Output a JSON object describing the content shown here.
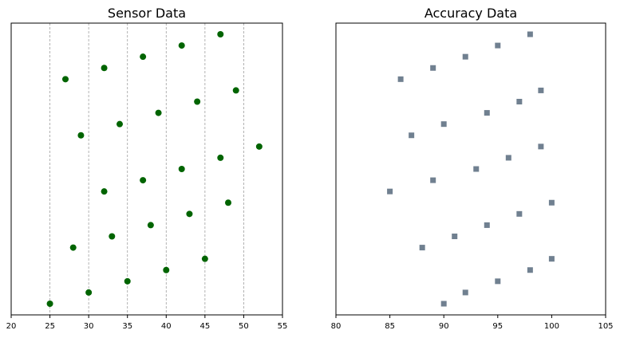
{
  "chart_data": [
    {
      "type": "scatter",
      "title": "Sensor Data",
      "xlabel": "",
      "ylabel": "",
      "xlim": [
        20,
        55
      ],
      "xticks": [
        20,
        25,
        30,
        35,
        40,
        45,
        50,
        55
      ],
      "yticks_visible": false,
      "grid": "x-dashed",
      "marker": "circle",
      "color": "#006400",
      "points": [
        {
          "x": 25,
          "y": 0
        },
        {
          "x": 30,
          "y": 1
        },
        {
          "x": 35,
          "y": 2
        },
        {
          "x": 40,
          "y": 3
        },
        {
          "x": 45,
          "y": 4
        },
        {
          "x": 28,
          "y": 5
        },
        {
          "x": 33,
          "y": 6
        },
        {
          "x": 38,
          "y": 7
        },
        {
          "x": 43,
          "y": 8
        },
        {
          "x": 48,
          "y": 9
        },
        {
          "x": 32,
          "y": 10
        },
        {
          "x": 37,
          "y": 11
        },
        {
          "x": 42,
          "y": 12
        },
        {
          "x": 47,
          "y": 13
        },
        {
          "x": 52,
          "y": 14
        },
        {
          "x": 29,
          "y": 15
        },
        {
          "x": 34,
          "y": 16
        },
        {
          "x": 39,
          "y": 17
        },
        {
          "x": 44,
          "y": 18
        },
        {
          "x": 49,
          "y": 19
        },
        {
          "x": 27,
          "y": 20
        },
        {
          "x": 32,
          "y": 21
        },
        {
          "x": 37,
          "y": 22
        },
        {
          "x": 42,
          "y": 23
        },
        {
          "x": 47,
          "y": 24
        }
      ]
    },
    {
      "type": "scatter",
      "title": "Accuracy Data",
      "xlabel": "",
      "ylabel": "",
      "xlim": [
        80,
        105
      ],
      "xticks": [
        80,
        85,
        90,
        95,
        100,
        105
      ],
      "yticks_visible": false,
      "grid": "none",
      "marker": "square",
      "color": "#708090",
      "points": [
        {
          "x": 90,
          "y": 0
        },
        {
          "x": 92,
          "y": 1
        },
        {
          "x": 95,
          "y": 2
        },
        {
          "x": 98,
          "y": 3
        },
        {
          "x": 100,
          "y": 4
        },
        {
          "x": 88,
          "y": 5
        },
        {
          "x": 91,
          "y": 6
        },
        {
          "x": 94,
          "y": 7
        },
        {
          "x": 97,
          "y": 8
        },
        {
          "x": 100,
          "y": 9
        },
        {
          "x": 85,
          "y": 10
        },
        {
          "x": 89,
          "y": 11
        },
        {
          "x": 93,
          "y": 12
        },
        {
          "x": 96,
          "y": 13
        },
        {
          "x": 99,
          "y": 14
        },
        {
          "x": 87,
          "y": 15
        },
        {
          "x": 90,
          "y": 16
        },
        {
          "x": 94,
          "y": 17
        },
        {
          "x": 97,
          "y": 18
        },
        {
          "x": 99,
          "y": 19
        },
        {
          "x": 86,
          "y": 20
        },
        {
          "x": 89,
          "y": 21
        },
        {
          "x": 92,
          "y": 22
        },
        {
          "x": 95,
          "y": 23
        },
        {
          "x": 98,
          "y": 24
        }
      ]
    }
  ]
}
